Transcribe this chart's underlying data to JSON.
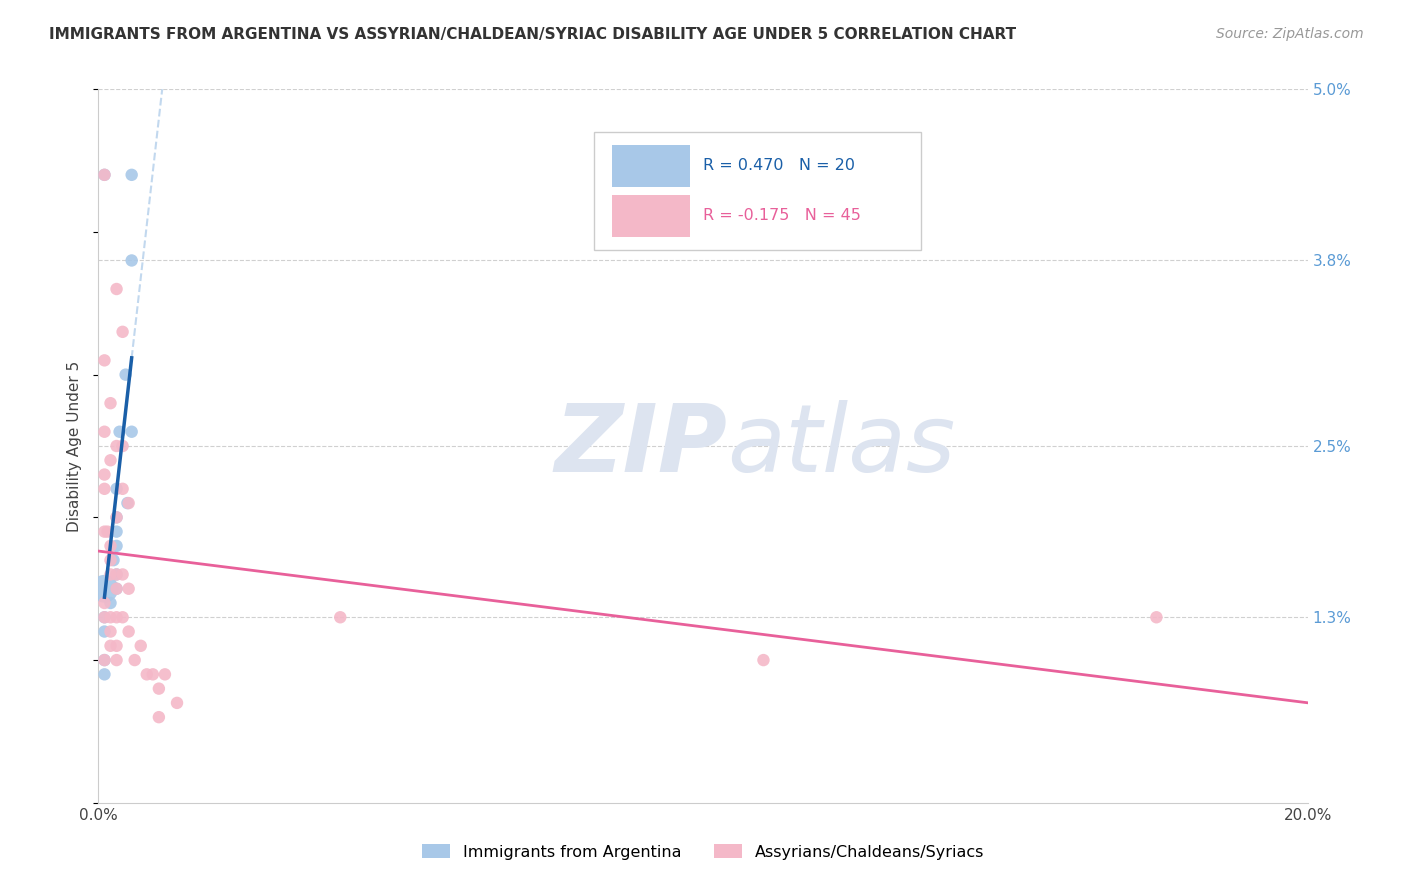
{
  "title": "IMMIGRANTS FROM ARGENTINA VS ASSYRIAN/CHALDEAN/SYRIAC DISABILITY AGE UNDER 5 CORRELATION CHART",
  "source": "Source: ZipAtlas.com",
  "ylabel": "Disability Age Under 5",
  "xlim": [
    0.0,
    0.2
  ],
  "ylim": [
    0.0,
    0.05
  ],
  "watermark_zip": "ZIP",
  "watermark_atlas": "atlas",
  "blue_label": "Immigrants from Argentina",
  "pink_label": "Assyrians/Chaldeans/Syriacs",
  "blue_R": "0.470",
  "blue_N": "20",
  "pink_R": "-0.175",
  "pink_N": "45",
  "blue_color": "#a8c8e8",
  "pink_color": "#f4b8c8",
  "blue_line_color": "#1a5fa8",
  "pink_line_color": "#e8609a",
  "blue_points": [
    [
      0.0055,
      0.044
    ],
    [
      0.001,
      0.044
    ],
    [
      0.0055,
      0.038
    ],
    [
      0.0045,
      0.03
    ],
    [
      0.0035,
      0.026
    ],
    [
      0.0055,
      0.026
    ],
    [
      0.003,
      0.022
    ],
    [
      0.0048,
      0.021
    ],
    [
      0.003,
      0.02
    ],
    [
      0.003,
      0.019
    ],
    [
      0.003,
      0.018
    ],
    [
      0.0025,
      0.017
    ],
    [
      0.003,
      0.016
    ],
    [
      0.003,
      0.015
    ],
    [
      0.001,
      0.015
    ],
    [
      0.002,
      0.014
    ],
    [
      0.001,
      0.013
    ],
    [
      0.001,
      0.012
    ],
    [
      0.001,
      0.01
    ],
    [
      0.001,
      0.009
    ]
  ],
  "blue_sizes": [
    80,
    80,
    80,
    80,
    80,
    80,
    80,
    80,
    80,
    80,
    80,
    80,
    80,
    80,
    400,
    80,
    80,
    80,
    80,
    80
  ],
  "pink_points": [
    [
      0.001,
      0.044
    ],
    [
      0.003,
      0.036
    ],
    [
      0.004,
      0.033
    ],
    [
      0.001,
      0.031
    ],
    [
      0.002,
      0.028
    ],
    [
      0.001,
      0.026
    ],
    [
      0.003,
      0.025
    ],
    [
      0.004,
      0.025
    ],
    [
      0.002,
      0.024
    ],
    [
      0.001,
      0.023
    ],
    [
      0.004,
      0.022
    ],
    [
      0.001,
      0.022
    ],
    [
      0.005,
      0.021
    ],
    [
      0.003,
      0.02
    ],
    [
      0.001,
      0.019
    ],
    [
      0.0015,
      0.019
    ],
    [
      0.002,
      0.018
    ],
    [
      0.002,
      0.017
    ],
    [
      0.002,
      0.016
    ],
    [
      0.003,
      0.016
    ],
    [
      0.004,
      0.016
    ],
    [
      0.003,
      0.015
    ],
    [
      0.005,
      0.015
    ],
    [
      0.001,
      0.014
    ],
    [
      0.001,
      0.013
    ],
    [
      0.002,
      0.013
    ],
    [
      0.003,
      0.013
    ],
    [
      0.004,
      0.013
    ],
    [
      0.002,
      0.012
    ],
    [
      0.005,
      0.012
    ],
    [
      0.002,
      0.011
    ],
    [
      0.003,
      0.011
    ],
    [
      0.007,
      0.011
    ],
    [
      0.001,
      0.01
    ],
    [
      0.003,
      0.01
    ],
    [
      0.006,
      0.01
    ],
    [
      0.008,
      0.009
    ],
    [
      0.009,
      0.009
    ],
    [
      0.011,
      0.009
    ],
    [
      0.01,
      0.008
    ],
    [
      0.013,
      0.007
    ],
    [
      0.01,
      0.006
    ],
    [
      0.04,
      0.013
    ],
    [
      0.175,
      0.013
    ],
    [
      0.11,
      0.01
    ]
  ],
  "pink_sizes": [
    80,
    80,
    80,
    80,
    80,
    80,
    80,
    80,
    80,
    80,
    80,
    80,
    80,
    80,
    80,
    80,
    80,
    80,
    80,
    80,
    80,
    80,
    80,
    80,
    80,
    80,
    80,
    80,
    80,
    80,
    80,
    80,
    80,
    80,
    80,
    80,
    80,
    80,
    80,
    80,
    80,
    80,
    80,
    80,
    80
  ]
}
